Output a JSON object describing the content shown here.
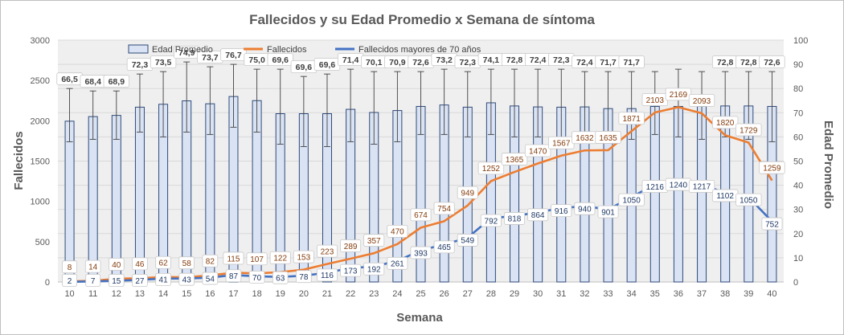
{
  "chart_data": {
    "type": "bar",
    "title": "Fallecidos  y su Edad Promedio  x Semana de síntoma",
    "xlabel": "Semana",
    "ylabel": "Fallecidos",
    "y2label": "Edad Promedio",
    "ylim": [
      0,
      3000
    ],
    "y2lim": [
      0,
      100
    ],
    "yticks": [
      "0",
      "500",
      "1000",
      "1500",
      "2000",
      "2500",
      "3000"
    ],
    "y2ticks": [
      "0",
      "10",
      "20",
      "30",
      "40",
      "50",
      "60",
      "70",
      "80",
      "90",
      "100"
    ],
    "grid": "horizontal",
    "legend_position": "top-left",
    "categories": [
      "10",
      "11",
      "12",
      "13",
      "14",
      "15",
      "16",
      "17",
      "18",
      "19",
      "20",
      "21",
      "22",
      "23",
      "24",
      "25",
      "26",
      "27",
      "28",
      "29",
      "30",
      "31",
      "32",
      "33",
      "34",
      "35",
      "36",
      "37",
      "38",
      "39",
      "40"
    ],
    "series": [
      {
        "name": "Edad Promedio",
        "kind": "bar",
        "axis": "right",
        "color": "#dae3f3",
        "edge_color": "#2f4a7a",
        "values": [
          66.5,
          68.4,
          68.9,
          72.3,
          73.5,
          74.9,
          73.7,
          76.7,
          75.0,
          69.6,
          69.6,
          69.6,
          71.4,
          70.1,
          70.9,
          72.6,
          73.2,
          72.3,
          74.1,
          72.8,
          72.4,
          72.3,
          72.4,
          71.7,
          71.7,
          72.6,
          72.6,
          72.6,
          72.8,
          72.8,
          72.6
        ],
        "labels": [
          "66,5",
          "68,4",
          "68,9",
          "72,3",
          "73,5",
          "74,9",
          "73,7",
          "76,7",
          "75,0",
          "69,6",
          "69,6",
          "69,6",
          "71,4",
          "70,1",
          "70,9",
          "72,6",
          "73,2",
          "72,3",
          "74,1",
          "72,8",
          "72,4",
          "72,3",
          "72,4",
          "71,7",
          "71,7",
          "",
          "",
          "",
          "72,8",
          "72,8",
          "72,6"
        ],
        "error_upper": [
          80,
          79,
          79,
          86,
          87,
          91,
          89,
          90,
          88,
          88,
          85,
          86,
          88,
          87,
          87,
          87,
          88,
          87,
          88,
          88,
          88,
          88,
          87,
          87,
          87,
          87,
          88,
          87,
          87,
          87,
          87
        ],
        "error_lower": [
          58,
          59,
          59,
          62,
          60,
          62,
          61,
          64,
          62,
          57,
          56,
          56,
          58,
          57,
          58,
          61,
          61,
          60,
          61,
          60,
          60,
          60,
          60,
          59,
          59,
          61,
          60,
          59,
          60,
          59,
          58
        ]
      },
      {
        "name": "Fallecidos",
        "kind": "line",
        "axis": "left",
        "color": "#ed7d31",
        "values": [
          8,
          14,
          40,
          46,
          62,
          58,
          82,
          115,
          107,
          122,
          153,
          223,
          289,
          357,
          470,
          674,
          754,
          949,
          1252,
          1365,
          1470,
          1567,
          1632,
          1635,
          1871,
          2103,
          2169,
          2093,
          1820,
          1729,
          1259
        ],
        "path_values": [
          8,
          14,
          40,
          46,
          62,
          58,
          82,
          115,
          107,
          122,
          153,
          223,
          289,
          357,
          470,
          674,
          754,
          949,
          1252,
          1365,
          1470,
          1567,
          1632,
          1635,
          1871,
          2103,
          2169,
          2093,
          1820,
          1729,
          1259
        ]
      },
      {
        "name": "Fallecidos mayores de 70 años",
        "kind": "line",
        "axis": "left",
        "color": "#4472c4",
        "values": [
          2,
          7,
          15,
          27,
          41,
          43,
          54,
          87,
          70,
          63,
          78,
          116,
          173,
          192,
          261,
          393,
          465,
          549,
          792,
          818,
          864,
          916,
          940,
          901,
          1050,
          1216,
          1240,
          1217,
          1102,
          1050,
          752
        ]
      }
    ],
    "fall_line_offsets": [
      0,
      0,
      0,
      0,
      0,
      0,
      0,
      0,
      0,
      0,
      0,
      0,
      0,
      0,
      0,
      0,
      0,
      0,
      0,
      0,
      0,
      0,
      0,
      0,
      0,
      0,
      0,
      0,
      0,
      0,
      0
    ]
  },
  "legend": {
    "edad": "Edad Promedio",
    "fall": "Fallecidos",
    "may": "Fallecidos mayores de 70 años"
  }
}
